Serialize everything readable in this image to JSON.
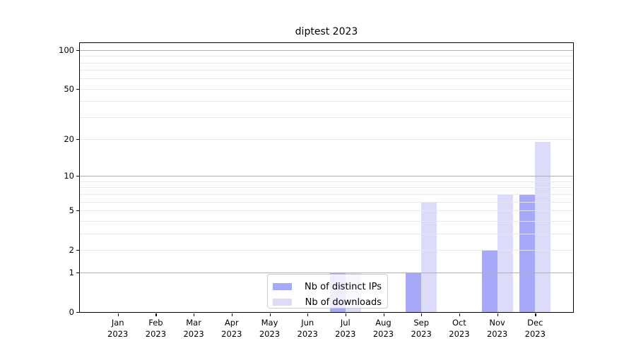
{
  "chart_data": {
    "type": "bar",
    "title": "diptest 2023",
    "categories": [
      "Jan 2023",
      "Feb 2023",
      "Mar 2023",
      "Apr 2023",
      "May 2023",
      "Jun 2023",
      "Jul 2023",
      "Aug 2023",
      "Sep 2023",
      "Oct 2023",
      "Nov 2023",
      "Dec 2023"
    ],
    "series": [
      {
        "name": "Nb of distinct IPs",
        "color": "#a8a8f8",
        "values": [
          0,
          0,
          0,
          0,
          0,
          0,
          1,
          0,
          1,
          0,
          2,
          7
        ]
      },
      {
        "name": "Nb of downloads",
        "color": "#dcdcfa",
        "values": [
          0,
          0,
          0,
          0,
          0,
          0,
          1,
          0,
          6,
          0,
          7,
          19
        ]
      }
    ],
    "xlabel": "",
    "ylabel": "",
    "yscale": "log1p",
    "ylim": [
      0,
      113
    ],
    "y_ticks": [
      0,
      1,
      2,
      5,
      10,
      20,
      50,
      100
    ],
    "grid": {
      "on": true,
      "major_values": [
        1,
        10,
        100
      ],
      "minor_values": [
        2,
        3,
        4,
        5,
        6,
        7,
        8,
        9,
        20,
        30,
        40,
        50,
        60,
        70,
        80,
        90
      ]
    },
    "legend_position": "lower center",
    "colors": {
      "grid_major": "#b0b0b0",
      "grid_minor": "#e8e8e8",
      "spine": "#000000",
      "legend_border": "#cccccc"
    }
  }
}
